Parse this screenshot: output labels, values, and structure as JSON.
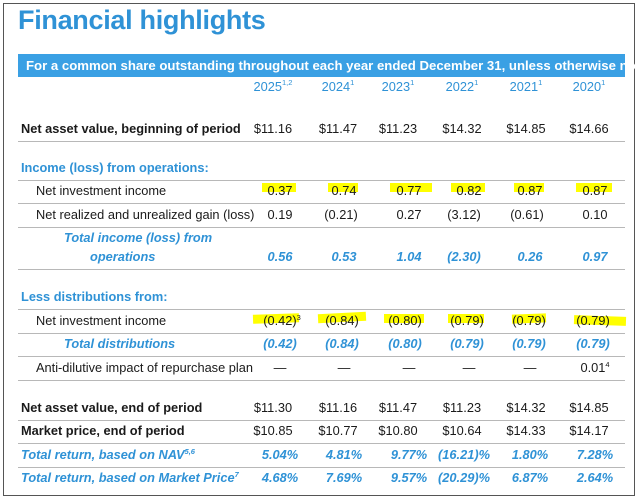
{
  "title": "Financial highlights",
  "banner": "For a common share outstanding throughout each year ended December 31, unless otherwise noted:",
  "years": [
    {
      "year": "2025",
      "note": "1,2"
    },
    {
      "year": "2024",
      "note": "1"
    },
    {
      "year": "2023",
      "note": "1"
    },
    {
      "year": "2022",
      "note": "1"
    },
    {
      "year": "2021",
      "note": "1"
    },
    {
      "year": "2020",
      "note": "1"
    }
  ],
  "highlight_color": "#ffff00",
  "accent_color": "#2f92d6",
  "rows": {
    "nav_begin": {
      "label": "Net asset value, beginning of period",
      "values": [
        "$11.16",
        "$11.47",
        "$11.23",
        "$14.32",
        "$14.85",
        "$14.66"
      ]
    },
    "income_heading": {
      "label": "Income (loss) from operations:"
    },
    "nii": {
      "label": "Net investment income",
      "values": [
        "0.37",
        "0.74",
        "0.77",
        "0.82",
        "0.87",
        "0.87"
      ]
    },
    "gain": {
      "label": "Net realized and unrealized gain (loss)",
      "values": [
        "0.19",
        "(0.21)",
        "0.27",
        "(3.12)",
        "(0.61)",
        "0.10"
      ]
    },
    "total_ops": {
      "label_line1": "Total income (loss) from",
      "label_line2": "operations",
      "values": [
        "0.56",
        "0.53",
        "1.04",
        "(2.30)",
        "0.26",
        "0.97"
      ]
    },
    "dist_heading": {
      "label": "Less distributions from:"
    },
    "dist_nii": {
      "label": "Net investment income",
      "values": [
        "(0.42)",
        "(0.84)",
        "(0.80)",
        "(0.79)",
        "(0.79)",
        "(0.79)"
      ],
      "first_note": "3"
    },
    "total_dist": {
      "label": "Total distributions",
      "values": [
        "(0.42)",
        "(0.84)",
        "(0.80)",
        "(0.79)",
        "(0.79)",
        "(0.79)"
      ]
    },
    "anti_dilutive": {
      "label": "Anti-dilutive impact of repurchase plan",
      "values": [
        "—",
        "—",
        "—",
        "—",
        "—",
        "0.01"
      ],
      "last_note": "4"
    },
    "nav_end": {
      "label": "Net asset value, end of period",
      "values": [
        "$11.30",
        "$11.16",
        "$11.47",
        "$11.23",
        "$14.32",
        "$14.85"
      ]
    },
    "market_price": {
      "label": "Market price, end of period",
      "values": [
        "$10.85",
        "$10.77",
        "$10.80",
        "$10.64",
        "$14.33",
        "$14.17"
      ]
    },
    "return_nav": {
      "label": "Total return, based on NAV",
      "note": "5,6",
      "values": [
        "5.04%",
        "4.81%",
        "9.77%",
        "(16.21)%",
        "1.80%",
        "7.28%"
      ]
    },
    "return_market": {
      "label": "Total return, based on Market Price",
      "note": "7",
      "values": [
        "4.68%",
        "7.69%",
        "9.57%",
        "(20.29)%",
        "6.87%",
        "2.64%"
      ]
    }
  }
}
